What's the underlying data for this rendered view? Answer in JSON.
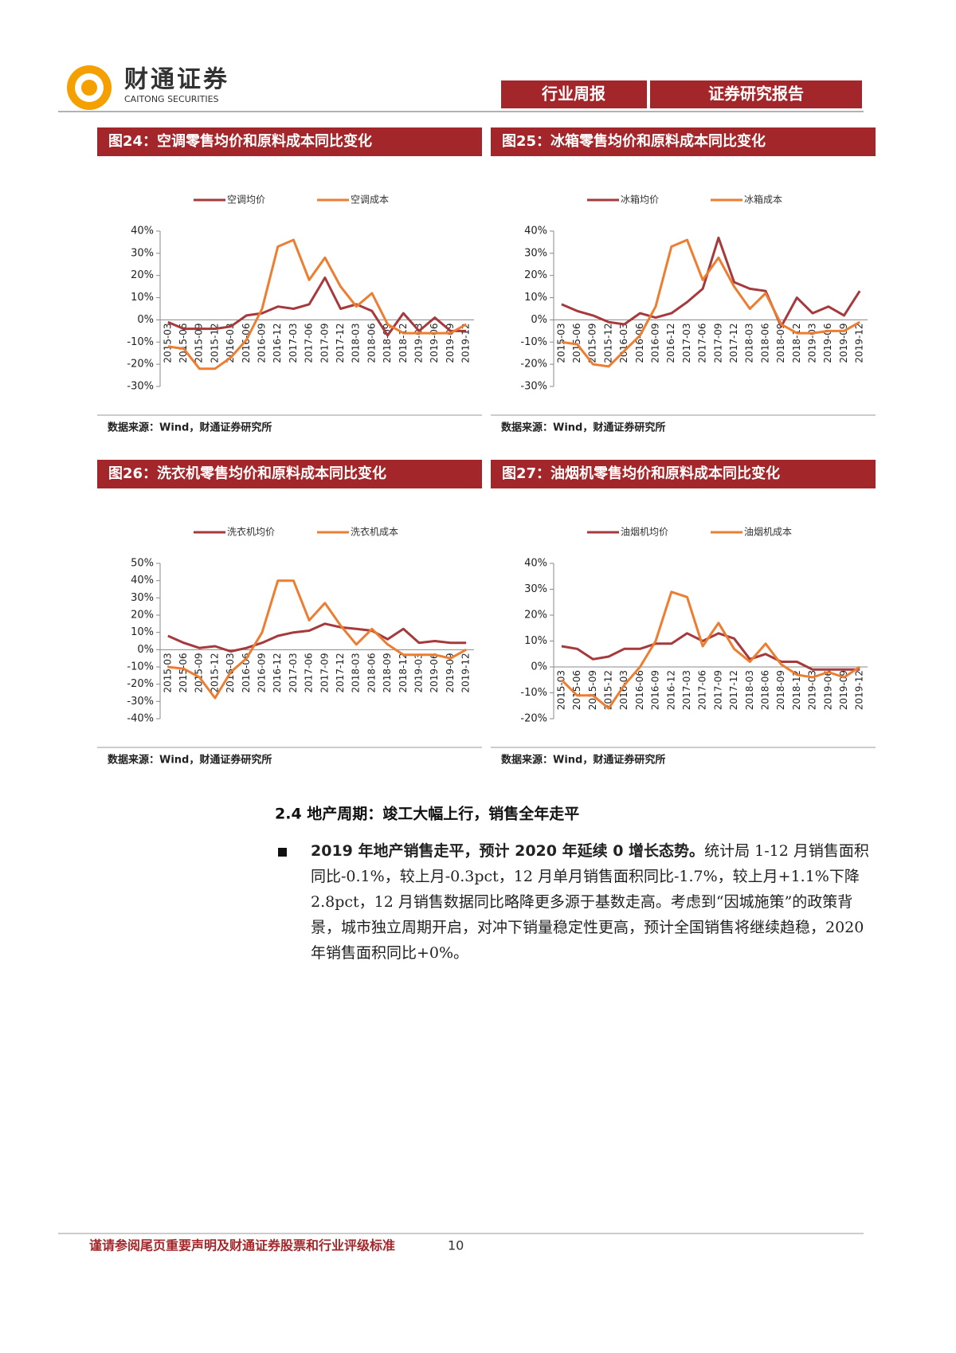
{
  "header": {
    "company": "财通证券",
    "company_en": "CAITONG SECURITIES",
    "tags": [
      "行业周报",
      "证券研究报告"
    ]
  },
  "chart_data": [
    {
      "type": "line",
      "title": "图24：空调零售均价和原料成本同比变化",
      "categories": [
        "2015-03",
        "2015-06",
        "2015-09",
        "2015-12",
        "2016-03",
        "2016-06",
        "2016-09",
        "2016-12",
        "2017-03",
        "2017-06",
        "2017-09",
        "2017-12",
        "2018-03",
        "2018-06",
        "2018-09",
        "2018-12",
        "2019-03",
        "2019-06",
        "2019-09",
        "2019-12"
      ],
      "series": [
        {
          "name": "空调均价",
          "color": "#a5393b",
          "values": [
            -1,
            -4,
            -4,
            -4,
            -3,
            2,
            3,
            6,
            5,
            7,
            19,
            5,
            7,
            4,
            -7,
            3,
            -5,
            1,
            -5,
            -5
          ]
        },
        {
          "name": "空调成本",
          "color": "#ed7d31",
          "values": [
            -12,
            -13,
            -22,
            -22,
            -17,
            -9,
            5,
            33,
            36,
            18,
            28,
            15,
            6,
            12,
            -2,
            -6,
            -6,
            -6,
            -6,
            -2
          ]
        }
      ],
      "ylim": [
        -30,
        40
      ],
      "yticks": [
        {
          "value": -30,
          "label": "-30%"
        },
        {
          "value": -20,
          "label": "-20%"
        },
        {
          "value": -10,
          "label": "-10%"
        },
        {
          "value": 0,
          "label": "0%"
        },
        {
          "value": 10,
          "label": "10%"
        },
        {
          "value": 20,
          "label": "20%"
        },
        {
          "value": 30,
          "label": "30%"
        },
        {
          "value": 40,
          "label": "40%"
        }
      ],
      "source": "数据来源：Wind，财通证券研究所"
    },
    {
      "type": "line",
      "title": "图25：冰箱零售均价和原料成本同比变化",
      "categories": [
        "2015-03",
        "2015-06",
        "2015-09",
        "2015-12",
        "2016-03",
        "2016-06",
        "2016-09",
        "2016-12",
        "2017-03",
        "2017-06",
        "2017-09",
        "2017-12",
        "2018-03",
        "2018-06",
        "2018-09",
        "2018-12",
        "2019-03",
        "2019-06",
        "2019-09",
        "2019-12"
      ],
      "series": [
        {
          "name": "冰箱均价",
          "color": "#a5393b",
          "values": [
            7,
            4,
            2,
            -1,
            -2,
            3,
            1,
            3,
            8,
            14,
            37,
            17,
            14,
            13,
            -3,
            10,
            3,
            6,
            2,
            13
          ]
        },
        {
          "name": "冰箱成本",
          "color": "#ed7d31",
          "values": [
            -10,
            -11,
            -20,
            -21,
            -14,
            -7,
            6,
            33,
            36,
            18,
            28,
            15,
            5,
            12,
            -2,
            -6,
            -6,
            -5,
            -5,
            -1
          ]
        }
      ],
      "ylim": [
        -30,
        40
      ],
      "yticks": [
        {
          "value": -30,
          "label": "-30%"
        },
        {
          "value": -20,
          "label": "-20%"
        },
        {
          "value": -10,
          "label": "-10%"
        },
        {
          "value": 0,
          "label": "0%"
        },
        {
          "value": 10,
          "label": "10%"
        },
        {
          "value": 20,
          "label": "20%"
        },
        {
          "value": 30,
          "label": "30%"
        },
        {
          "value": 40,
          "label": "40%"
        }
      ],
      "source": "数据来源：Wind，财通证券研究所"
    },
    {
      "type": "line",
      "title": "图26：洗衣机零售均价和原料成本同比变化",
      "categories": [
        "2015-03",
        "2015-06",
        "2015-09",
        "2015-12",
        "2016-03",
        "2016-06",
        "2016-09",
        "2016-12",
        "2017-03",
        "2017-06",
        "2017-09",
        "2017-12",
        "2018-03",
        "2018-06",
        "2018-09",
        "2018-12",
        "2019-03",
        "2019-06",
        "2019-09",
        "2019-12"
      ],
      "series": [
        {
          "name": "洗衣机均价",
          "color": "#a5393b",
          "values": [
            8,
            4,
            1,
            2,
            -1,
            1,
            4,
            8,
            10,
            11,
            15,
            13,
            12,
            11,
            6,
            12,
            4,
            5,
            4,
            4
          ]
        },
        {
          "name": "洗衣机成本",
          "color": "#ed7d31",
          "values": [
            -10,
            -11,
            -16,
            -28,
            -13,
            -5,
            10,
            40,
            40,
            17,
            27,
            14,
            3,
            12,
            3,
            -3,
            -3,
            -3,
            -5,
            0
          ]
        }
      ],
      "ylim": [
        -40,
        50
      ],
      "yticks": [
        {
          "value": -40,
          "label": "-40%"
        },
        {
          "value": -30,
          "label": "-30%"
        },
        {
          "value": -20,
          "label": "-20%"
        },
        {
          "value": -10,
          "label": "-10%"
        },
        {
          "value": 0,
          "label": "0%"
        },
        {
          "value": 10,
          "label": "10%"
        },
        {
          "value": 20,
          "label": "20%"
        },
        {
          "value": 30,
          "label": "30%"
        },
        {
          "value": 40,
          "label": "40%"
        },
        {
          "value": 50,
          "label": "50%"
        }
      ],
      "source": "数据来源：Wind，财通证券研究所"
    },
    {
      "type": "line",
      "title": "图27：油烟机零售均价和原料成本同比变化",
      "categories": [
        "2015-03",
        "2015-06",
        "2015-09",
        "2015-12",
        "2016-03",
        "2016-06",
        "2016-09",
        "2016-12",
        "2017-03",
        "2017-06",
        "2017-09",
        "2017-12",
        "2018-03",
        "2018-06",
        "2018-09",
        "2018-12",
        "2019-03",
        "2019-06",
        "2019-09",
        "2019-12"
      ],
      "series": [
        {
          "name": "油烟机均价",
          "color": "#a5393b",
          "values": [
            8,
            7,
            3,
            4,
            7,
            7,
            9,
            9,
            13,
            10,
            13,
            11,
            3,
            5,
            2,
            2,
            -1,
            -1,
            -1,
            -1
          ]
        },
        {
          "name": "油烟机成本",
          "color": "#ed7d31",
          "values": [
            -5,
            -11,
            -11,
            -16,
            -7,
            0,
            10,
            29,
            27,
            8,
            17,
            7,
            2,
            9,
            1,
            -3,
            -4,
            -2,
            -4,
            0
          ]
        }
      ],
      "ylim": [
        -20,
        40
      ],
      "yticks": [
        {
          "value": -20,
          "label": "-20%"
        },
        {
          "value": -10,
          "label": "-10%"
        },
        {
          "value": 0,
          "label": "0%"
        },
        {
          "value": 10,
          "label": "10%"
        },
        {
          "value": 20,
          "label": "20%"
        },
        {
          "value": 30,
          "label": "30%"
        },
        {
          "value": 40,
          "label": "40%"
        }
      ],
      "source": "数据来源：Wind，财通证券研究所"
    }
  ],
  "section": {
    "heading": "2.4 地产周期：竣工大幅上行，销售全年走平",
    "lead": "2019 年地产销售走平，预计 2020 年延续 0 增长态势。",
    "body": "统计局 1-12 月销售面积同比-0.1%，较上月-0.3pct，12 月单月销售面积同比-1.7%，较上月+1.1%下降 2.8pct，12 月销售数据同比略降更多源于基数走高。考虑到“因城施策”的政策背景，城市独立周期开启，对冲下销量稳定性更高，预计全国销售将继续趋稳，2020 年销售面积同比+0%。"
  },
  "footer": {
    "disclaimer": "谨请参阅尾页重要声明及财通证券股票和行业评级标准",
    "page": "10"
  }
}
